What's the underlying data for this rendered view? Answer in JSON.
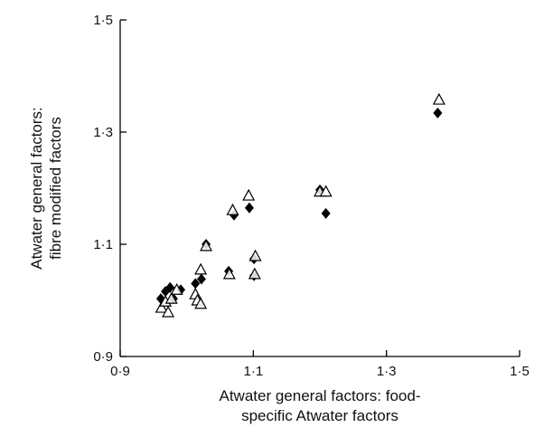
{
  "chart_data": {
    "type": "scatter",
    "title": "",
    "xlabel": [
      "Atwater general factors: food-",
      "specific Atwater factors"
    ],
    "ylabel": [
      "Atwater general factors:",
      "fibre modified factors"
    ],
    "xlim": [
      0.9,
      1.5
    ],
    "ylim": [
      0.9,
      1.5
    ],
    "xticks": [
      0.9,
      1.1,
      1.3,
      1.5
    ],
    "yticks": [
      0.9,
      1.1,
      1.3,
      1.5
    ],
    "xtick_labels": [
      "0·9",
      "1·1",
      "1·3",
      "1·5"
    ],
    "ytick_labels": [
      "0·9",
      "1·1",
      "1·3",
      "1·5"
    ],
    "grid": false,
    "series": [
      {
        "name": "filled diamonds",
        "marker": "diamond",
        "color": "#000000",
        "points": [
          [
            0.961,
            1.003
          ],
          [
            0.968,
            1.016
          ],
          [
            0.975,
            1.023
          ],
          [
            0.98,
            1.003
          ],
          [
            0.991,
            1.019
          ],
          [
            1.013,
            1.03
          ],
          [
            1.022,
            1.038
          ],
          [
            1.029,
            1.1
          ],
          [
            1.063,
            1.052
          ],
          [
            1.071,
            1.152
          ],
          [
            1.094,
            1.165
          ],
          [
            1.101,
            1.044
          ],
          [
            1.101,
            1.074
          ],
          [
            1.2,
            1.197
          ],
          [
            1.209,
            1.155
          ],
          [
            1.377,
            1.334
          ]
        ]
      },
      {
        "name": "open triangles",
        "marker": "triangle",
        "color": "#000000",
        "points": [
          [
            0.962,
            0.987
          ],
          [
            0.968,
            0.998
          ],
          [
            0.972,
            0.979
          ],
          [
            0.977,
            1.003
          ],
          [
            0.985,
            1.019
          ],
          [
            1.013,
            1.011
          ],
          [
            1.016,
            1.0
          ],
          [
            1.021,
            0.994
          ],
          [
            1.021,
            1.055
          ],
          [
            1.029,
            1.097
          ],
          [
            1.064,
            1.047
          ],
          [
            1.069,
            1.161
          ],
          [
            1.093,
            1.187
          ],
          [
            1.103,
            1.079
          ],
          [
            1.102,
            1.047
          ],
          [
            1.2,
            1.194
          ],
          [
            1.209,
            1.194
          ],
          [
            1.379,
            1.358
          ]
        ]
      }
    ]
  }
}
